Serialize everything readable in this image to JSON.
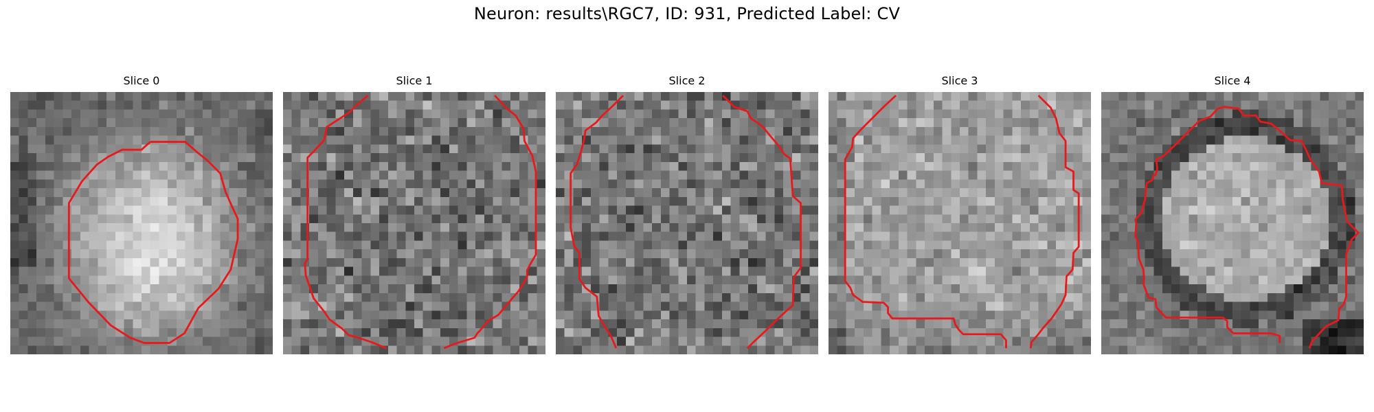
{
  "suptitle": "Neuron: results\\RGC7, ID: 931, Predicted Label: CV",
  "grid_size": 30,
  "contour_color": "#e8191a",
  "panels": [
    {
      "title": "Slice 0",
      "style": "center-bright",
      "contour": [
        [
          16,
          5.7
        ],
        [
          20,
          5.7
        ],
        [
          21.5,
          7
        ],
        [
          22.5,
          7.8
        ],
        [
          24,
          9.3
        ],
        [
          24.6,
          11.4
        ],
        [
          25.3,
          13
        ],
        [
          26,
          14.5
        ],
        [
          26,
          16.8
        ],
        [
          25.2,
          20.3
        ],
        [
          23.8,
          22.5
        ],
        [
          21.5,
          24.7
        ],
        [
          19.9,
          27.6
        ],
        [
          18.2,
          28.7
        ],
        [
          15.3,
          28.7
        ],
        [
          13.7,
          28.1
        ],
        [
          11.5,
          26.7
        ],
        [
          8.9,
          24
        ],
        [
          6.7,
          21.3
        ],
        [
          6.7,
          12.7
        ],
        [
          8.2,
          10.2
        ],
        [
          9.9,
          8.3
        ],
        [
          11.2,
          7.4
        ],
        [
          12.8,
          6.6
        ],
        [
          15,
          6.6
        ],
        [
          16,
          5.7
        ]
      ],
      "closed": true
    },
    {
      "title": "Slice 1",
      "style": "uniform",
      "segments": [
        [
          [
            9.7,
            0.4
          ],
          [
            8.3,
            1.6
          ],
          [
            7.6,
            2.3
          ],
          [
            6.7,
            2.9
          ],
          [
            5,
            4
          ],
          [
            4.7,
            5.5
          ],
          [
            3.5,
            6.8
          ],
          [
            2.8,
            7.5
          ],
          [
            2.8,
            19.1
          ],
          [
            2.5,
            19.6
          ],
          [
            2.6,
            21
          ],
          [
            3.2,
            22.7
          ],
          [
            3.5,
            23.6
          ],
          [
            4.7,
            25.1
          ],
          [
            5.3,
            26
          ],
          [
            6.8,
            27.1
          ],
          [
            7.5,
            27.8
          ],
          [
            8.6,
            28.1
          ],
          [
            10.1,
            28.6
          ],
          [
            11.8,
            29.3
          ]
        ],
        [
          [
            24.2,
            0.4
          ],
          [
            25.6,
            1.9
          ],
          [
            26.6,
            2.7
          ],
          [
            27.5,
            4.2
          ],
          [
            27.6,
            5.6
          ],
          [
            28.5,
            7.3
          ],
          [
            28.9,
            9.1
          ],
          [
            28.9,
            18.6
          ],
          [
            28.2,
            19.8
          ],
          [
            27.9,
            20.4
          ],
          [
            27.9,
            21.2
          ],
          [
            26.9,
            22.8
          ],
          [
            26.2,
            23.6
          ],
          [
            25.6,
            24.3
          ],
          [
            24.6,
            25.5
          ],
          [
            23.4,
            26.2
          ],
          [
            22.5,
            27.3
          ],
          [
            22.2,
            27.6
          ],
          [
            21.9,
            28.1
          ],
          [
            19.6,
            28.8
          ],
          [
            18.4,
            29.3
          ]
        ]
      ]
    },
    {
      "title": "Slice 2",
      "style": "uniform",
      "segments": [
        [
          [
            7.7,
            0.4
          ],
          [
            6.4,
            1.7
          ],
          [
            5.3,
            2.7
          ],
          [
            4.6,
            3.5
          ],
          [
            3.4,
            4.4
          ],
          [
            3.2,
            5.6
          ],
          [
            2.8,
            7.1
          ],
          [
            2.4,
            8.3
          ],
          [
            1.7,
            9.3
          ],
          [
            1.7,
            15.5
          ],
          [
            2.1,
            17.6
          ],
          [
            2.7,
            18.4
          ],
          [
            2.7,
            21.4
          ],
          [
            3.4,
            22.4
          ],
          [
            4.7,
            23.4
          ],
          [
            4.9,
            25.6
          ],
          [
            5.6,
            26.8
          ],
          [
            6.3,
            27.9
          ],
          [
            6.9,
            29.3
          ]
        ],
        [
          [
            19.1,
            0.4
          ],
          [
            20.4,
            1.7
          ],
          [
            21.9,
            2.2
          ],
          [
            22.3,
            3
          ],
          [
            23.6,
            3.9
          ],
          [
            24.5,
            5
          ],
          [
            25.6,
            6.3
          ],
          [
            26.1,
            7.1
          ],
          [
            26.8,
            7.6
          ],
          [
            27.1,
            11.9
          ],
          [
            28,
            12.7
          ],
          [
            28,
            20.1
          ],
          [
            27.2,
            21.2
          ],
          [
            27.1,
            24.4
          ],
          [
            26.5,
            24.9
          ],
          [
            25.1,
            26.2
          ],
          [
            24,
            27.3
          ],
          [
            22.5,
            28.7
          ],
          [
            21.9,
            29.3
          ]
        ]
      ]
    },
    {
      "title": "Slice 3",
      "style": "bright-upper",
      "segments": [
        [
          [
            7.7,
            0.4
          ],
          [
            6.4,
            1.6
          ],
          [
            5,
            3
          ],
          [
            3.6,
            4.4
          ],
          [
            2.8,
            5.3
          ],
          [
            2.7,
            6.3
          ],
          [
            1.9,
            7.7
          ],
          [
            1.9,
            21.6
          ],
          [
            2.5,
            22.4
          ],
          [
            2.8,
            23.2
          ],
          [
            3.9,
            24
          ],
          [
            6.3,
            24.1
          ],
          [
            6.8,
            24.6
          ],
          [
            6.8,
            25.3
          ],
          [
            7.3,
            25.9
          ],
          [
            14.3,
            25.9
          ],
          [
            14.5,
            26.6
          ],
          [
            14.9,
            27.2
          ],
          [
            15.4,
            27.7
          ],
          [
            19.7,
            27.7
          ],
          [
            20.3,
            28.4
          ],
          [
            20.3,
            29.3
          ]
        ],
        [
          [
            24,
            0.4
          ],
          [
            25.4,
            1.8
          ],
          [
            26,
            3
          ],
          [
            26.4,
            4.7
          ],
          [
            27.1,
            5.6
          ],
          [
            27.1,
            8.6
          ],
          [
            28,
            9.1
          ],
          [
            28,
            11.2
          ],
          [
            28.6,
            11.6
          ],
          [
            28.6,
            17.7
          ],
          [
            28,
            18.4
          ],
          [
            27.9,
            20.3
          ],
          [
            27.2,
            21.1
          ],
          [
            27.1,
            23.2
          ],
          [
            26.6,
            24.3
          ],
          [
            25.5,
            25.9
          ],
          [
            24.6,
            26.9
          ],
          [
            23.9,
            27.8
          ],
          [
            23.2,
            28.6
          ],
          [
            23.1,
            29.3
          ]
        ]
      ]
    },
    {
      "title": "Slice 4",
      "style": "dark-ring",
      "segments": [
        [
          [
            20.4,
            28.7
          ],
          [
            20.4,
            27.9
          ],
          [
            19.4,
            27.6
          ],
          [
            15.1,
            27.6
          ],
          [
            14.4,
            26.9
          ],
          [
            14.4,
            26.2
          ],
          [
            13.9,
            25.8
          ],
          [
            7.4,
            25.8
          ],
          [
            6.9,
            25.3
          ],
          [
            6.3,
            24.6
          ],
          [
            6.2,
            23.7
          ],
          [
            5.4,
            23.5
          ],
          [
            4.8,
            21.9
          ],
          [
            4.9,
            21.3
          ],
          [
            4.8,
            20.3
          ],
          [
            4.3,
            19
          ],
          [
            4.2,
            17.1
          ],
          [
            3.9,
            16.5
          ],
          [
            4,
            15
          ],
          [
            3.9,
            14.6
          ],
          [
            4.6,
            13.8
          ],
          [
            5,
            12.3
          ],
          [
            5.2,
            10.4
          ],
          [
            5.8,
            10.1
          ],
          [
            6,
            9.5
          ],
          [
            6.2,
            9.5
          ],
          [
            6.4,
            8.8
          ],
          [
            6.3,
            7.7
          ],
          [
            7,
            7.4
          ],
          [
            8.2,
            6.3
          ],
          [
            9.2,
            5.3
          ],
          [
            10.1,
            4.4
          ],
          [
            11.2,
            3.3
          ],
          [
            12.5,
            2.8
          ],
          [
            13.3,
            1.9
          ],
          [
            14.1,
            1.7
          ],
          [
            15.7,
            1.9
          ],
          [
            16.3,
            2.7
          ],
          [
            17.7,
            2.7
          ],
          [
            18.2,
            3.4
          ],
          [
            19.4,
            3.6
          ],
          [
            20.5,
            4.5
          ],
          [
            21.6,
            5.5
          ],
          [
            22.9,
            5.6
          ],
          [
            23.4,
            6.6
          ],
          [
            23.9,
            7.7
          ],
          [
            24.9,
            9.1
          ],
          [
            25.2,
            10.4
          ],
          [
            27.5,
            10.7
          ],
          [
            27.6,
            12.3
          ],
          [
            28.1,
            14.8
          ],
          [
            29.4,
            16.1
          ],
          [
            28.6,
            16.9
          ],
          [
            28,
            18.6
          ],
          [
            28,
            23.4
          ],
          [
            27.7,
            24.3
          ],
          [
            27.2,
            24.8
          ],
          [
            27.1,
            26.1
          ],
          [
            25.7,
            26.8
          ],
          [
            24.1,
            28.5
          ],
          [
            23.8,
            29.3
          ]
        ]
      ]
    }
  ]
}
